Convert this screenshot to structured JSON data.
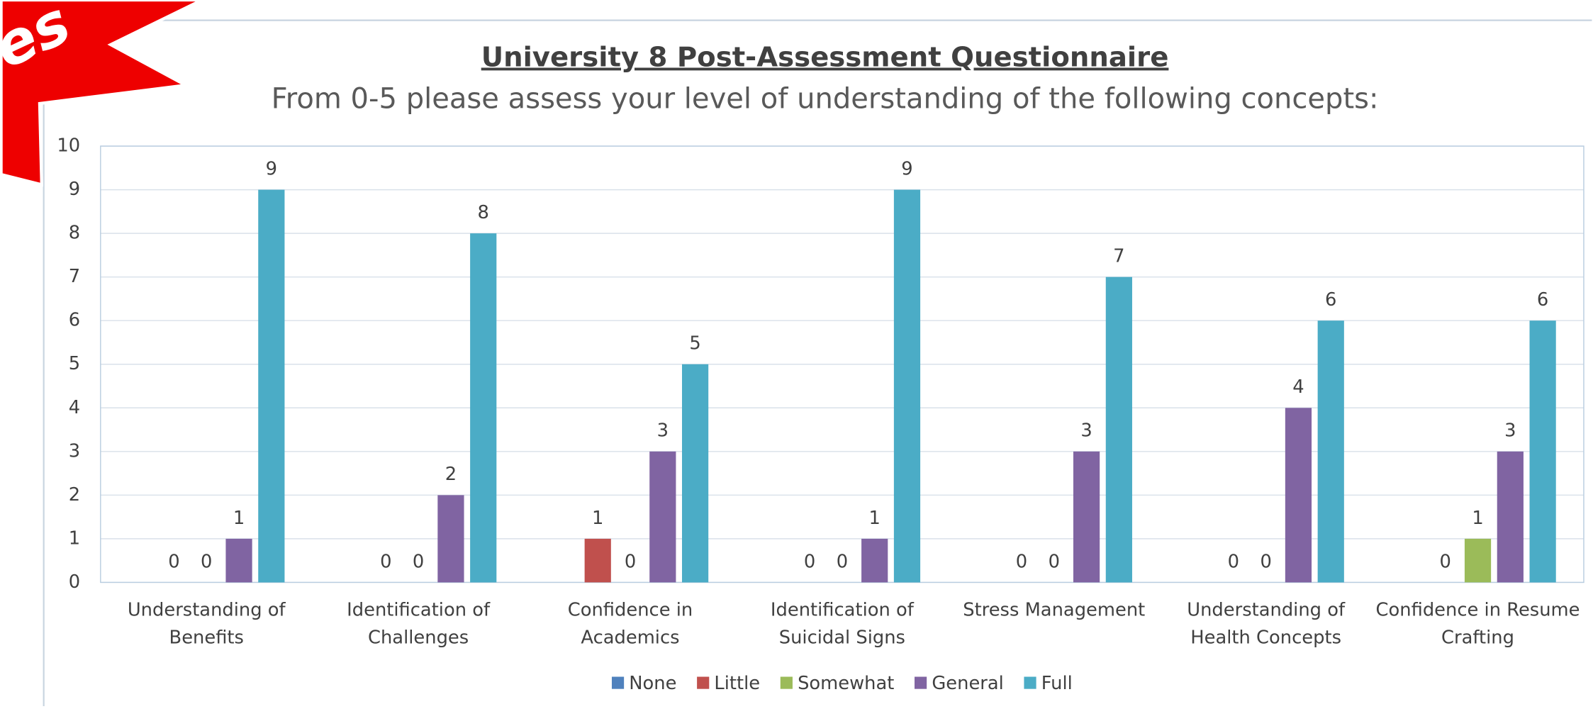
{
  "badge_text": "es",
  "chart_data": {
    "type": "bar",
    "title": "University 8 Post-Assessment Questionnaire",
    "subtitle": "From 0-5 please assess your level of understanding of the following concepts:",
    "categories": [
      "Understanding of Benefits",
      "Identification of Challenges",
      "Confidence in Academics",
      "Identification of Suicidal Signs",
      "Stress Management",
      "Understanding of Health Concepts",
      "Confidence in Resume Crafting"
    ],
    "series": [
      {
        "name": "None",
        "color": "#4f81bd",
        "values": [
          null,
          null,
          null,
          null,
          null,
          null,
          null
        ]
      },
      {
        "name": "Little",
        "color": "#c0504d",
        "values": [
          0,
          0,
          1,
          0,
          0,
          0,
          0
        ]
      },
      {
        "name": "Somewhat",
        "color": "#9bbb59",
        "values": [
          0,
          0,
          0,
          0,
          0,
          0,
          1
        ]
      },
      {
        "name": "General",
        "color": "#8064a2",
        "values": [
          1,
          2,
          3,
          1,
          3,
          4,
          3
        ]
      },
      {
        "name": "Full",
        "color": "#4bacc6",
        "values": [
          9,
          8,
          5,
          9,
          7,
          6,
          6
        ]
      }
    ],
    "ylim": [
      0,
      10
    ],
    "yticks": [
      0,
      1,
      2,
      3,
      4,
      5,
      6,
      7,
      8,
      9,
      10
    ],
    "grid": true,
    "legend": "bottom"
  }
}
